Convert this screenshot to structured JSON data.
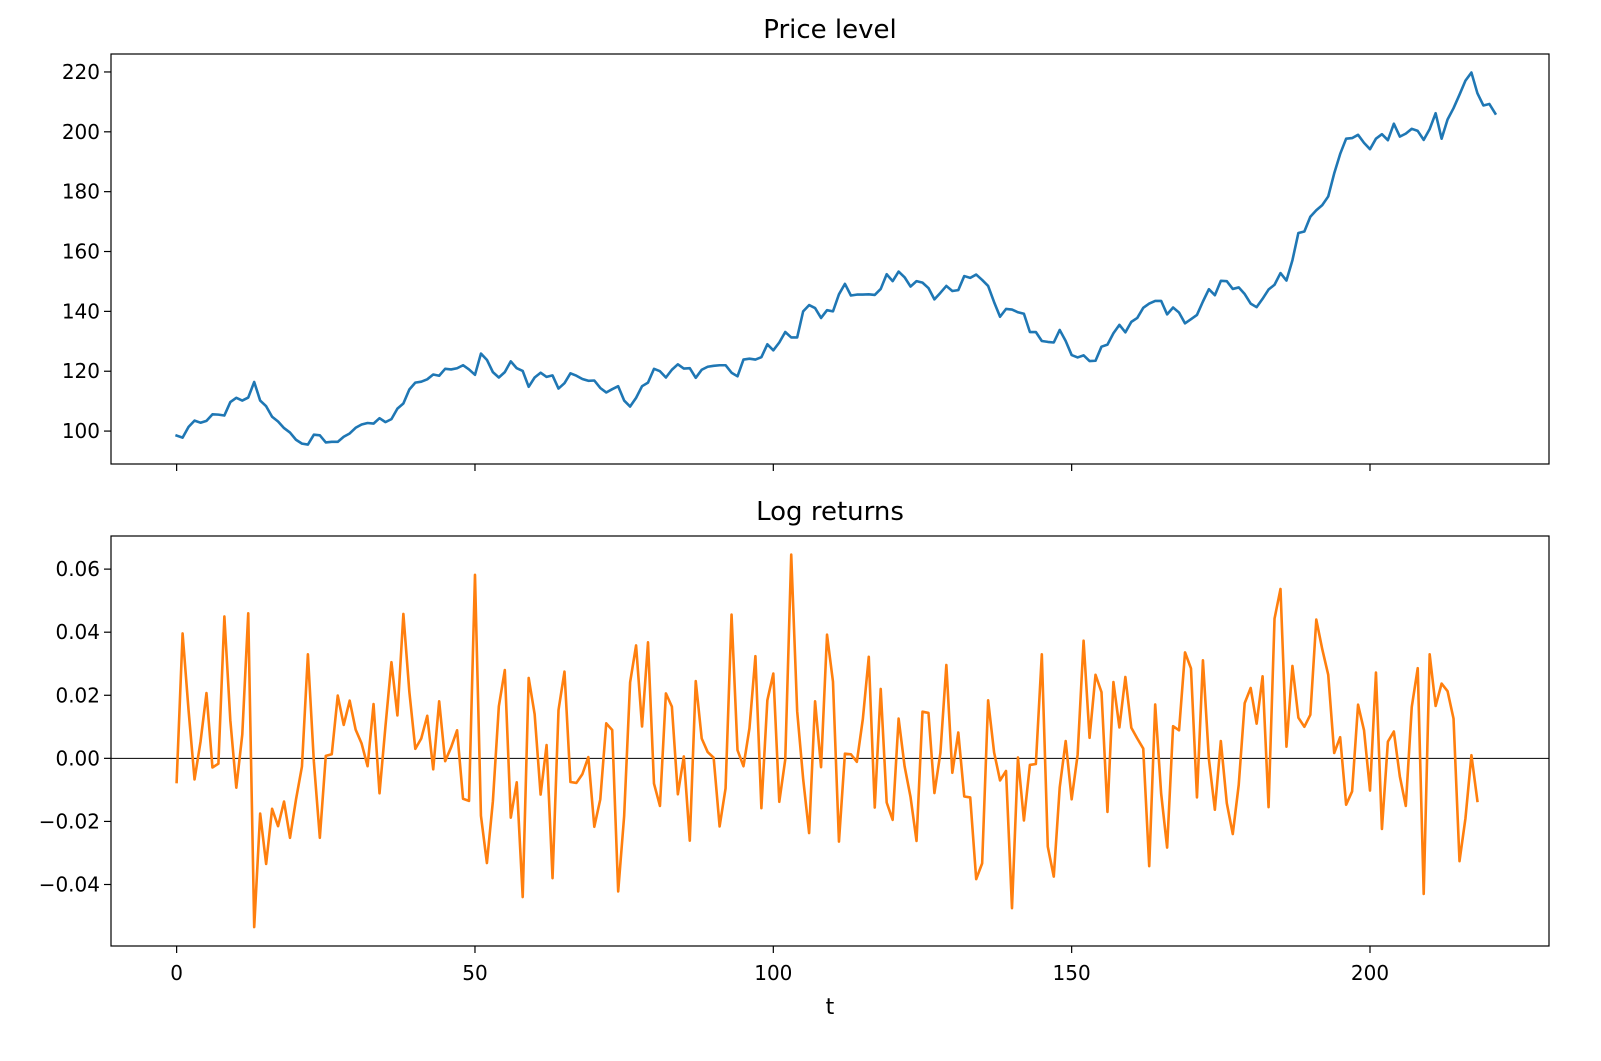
{
  "chart_data": [
    {
      "type": "line",
      "title": "Price level",
      "xlabel": "",
      "ylabel": "",
      "xlim": [
        -11,
        230
      ],
      "ylim": [
        89,
        226
      ],
      "xticks": [
        0,
        50,
        100,
        150,
        200
      ],
      "yticks": [
        100,
        120,
        140,
        160,
        180,
        200,
        220
      ],
      "ytick_labels": [
        "100",
        "120",
        "140",
        "160",
        "180",
        "200",
        "220"
      ],
      "show_xtick_labels": false,
      "grid": false,
      "color": "#1f77b4",
      "series": [
        {
          "x_start": 0,
          "values": [
            98.5,
            97.8,
            101.4,
            103.5,
            102.8,
            103.4,
            105.6,
            105.5,
            105.2,
            109.7,
            111.1,
            110.2,
            111.2,
            116.4,
            110.2,
            108.3,
            104.8,
            103.2,
            101.0,
            99.5,
            97.1,
            95.8,
            95.5,
            98.8,
            98.6,
            96.2,
            96.4,
            96.4,
            98.1,
            99.2,
            101.1,
            102.2,
            102.7,
            102.5,
            104.3,
            103.0,
            104.0,
            107.5,
            109.2,
            113.9,
            116.2,
            116.5,
            117.3,
            118.9,
            118.5,
            120.8,
            120.6,
            121.0,
            122.0,
            120.6,
            118.8,
            125.9,
            123.8,
            119.7,
            117.9,
            119.7,
            123.3,
            121.0,
            120.1,
            114.8,
            117.9,
            119.5,
            118.1,
            118.6,
            114.2,
            116.0,
            119.3,
            118.5,
            117.4,
            116.8,
            116.9,
            114.4,
            112.9,
            114.0,
            115.0,
            110.2,
            108.2,
            111.1,
            115.0,
            116.2,
            120.8,
            120.0,
            117.9,
            120.5,
            122.3,
            120.9,
            121.0,
            117.8,
            120.5,
            121.5,
            121.8,
            122.0,
            122.0,
            119.5,
            118.3,
            123.9,
            124.2,
            123.9,
            124.7,
            129.0,
            127.0,
            129.6,
            133.1,
            131.3,
            131.3,
            140.0,
            142.1,
            141.1,
            137.8,
            140.4,
            140.0,
            145.7,
            149.2,
            145.3,
            145.6,
            145.6,
            145.7,
            145.5,
            147.5,
            152.4,
            150.1,
            153.3,
            151.4,
            148.3,
            150.1,
            149.6,
            147.8,
            144.0,
            146.2,
            148.5,
            146.8,
            147.1,
            151.8,
            151.2,
            152.3,
            150.5,
            148.5,
            143.1,
            138.2,
            140.8,
            140.6,
            139.7,
            139.2,
            133.1,
            133.1,
            130.1,
            129.8,
            129.6,
            133.8,
            130.1,
            125.4,
            124.6,
            125.3,
            123.4,
            123.5,
            128.2,
            128.9,
            132.7,
            135.5,
            133.0,
            136.5,
            137.8,
            141.2,
            142.6,
            143.5,
            143.5,
            139.0,
            141.3,
            139.6,
            136.0,
            137.4,
            138.8,
            143.3,
            147.4,
            145.4,
            150.2,
            150.1,
            147.5,
            148.0,
            145.8,
            142.6,
            141.4,
            144.2,
            147.3,
            148.9,
            152.8,
            150.3,
            157.1,
            166.2,
            166.7,
            171.6,
            173.8,
            175.5,
            178.4,
            186.1,
            192.6,
            197.7,
            197.9,
            199.0,
            196.3,
            194.2,
            197.7,
            199.2,
            197.2,
            202.7,
            198.4,
            199.4,
            201.0,
            200.3,
            197.3,
            200.9,
            206.2,
            197.7,
            204.1,
            207.9,
            212.4,
            217.1,
            219.8,
            212.9,
            208.8,
            209.3,
            206.1
          ]
        }
      ]
    },
    {
      "type": "line",
      "title": "Log returns",
      "xlabel": "t",
      "ylabel": "",
      "xlim": [
        -11,
        230
      ],
      "ylim": [
        -0.0595,
        0.0705
      ],
      "xticks": [
        0,
        50,
        100,
        150,
        200
      ],
      "xtick_labels": [
        "0",
        "50",
        "100",
        "150",
        "200"
      ],
      "yticks": [
        -0.04,
        -0.02,
        0.0,
        0.02,
        0.04,
        0.06
      ],
      "ytick_labels": [
        "−0.04",
        "−0.02",
        "0.00",
        "0.02",
        "0.04",
        "0.06"
      ],
      "hline": 0,
      "grid": false,
      "color": "#ff7f0e",
      "series": [
        {
          "x_start": 0,
          "values": [
            -0.0075,
            0.0396,
            0.0152,
            -0.0067,
            0.0052,
            0.0207,
            -0.0029,
            -0.0017,
            0.045,
            0.012,
            -0.0093,
            0.0075,
            0.046,
            -0.0535,
            -0.0175,
            -0.0335,
            -0.016,
            -0.0215,
            -0.0137,
            -0.0252,
            -0.0131,
            -0.0026,
            0.033,
            -0.0011,
            -0.0252,
            0.0008,
            0.0013,
            0.0199,
            0.0106,
            0.0183,
            0.0091,
            0.0047,
            -0.0025,
            0.0172,
            -0.0111,
            0.0102,
            0.0305,
            0.0136,
            0.0458,
            0.0211,
            0.003,
            0.0063,
            0.0135,
            -0.0035,
            0.0181,
            -0.0009,
            0.0035,
            0.0089,
            -0.0128,
            -0.0135,
            0.0582,
            -0.0182,
            -0.0332,
            -0.0136,
            0.0165,
            0.028,
            -0.0188,
            -0.0076,
            -0.044,
            0.0255,
            0.014,
            -0.0115,
            0.0042,
            -0.038,
            0.0153,
            0.0275,
            -0.0075,
            -0.0078,
            -0.005,
            0.0004,
            -0.0217,
            -0.013,
            0.0111,
            0.009,
            -0.0422,
            -0.0183,
            0.0241,
            0.0358,
            0.0101,
            0.0368,
            -0.008,
            -0.0151,
            0.0206,
            0.0164,
            -0.0114,
            0.0006,
            -0.0261,
            0.0245,
            0.0063,
            0.002,
            0.0002,
            -0.0216,
            -0.0095,
            0.0456,
            0.0026,
            -0.0025,
            0.0095,
            0.0324,
            -0.0158,
            0.0184,
            0.0269,
            -0.0138,
            -0.0004,
            0.0646,
            0.0149,
            -0.0065,
            -0.0237,
            0.0181,
            -0.0028,
            0.0392,
            0.0243,
            -0.0264,
            0.0015,
            0.0013,
            -0.0011,
            0.0124,
            0.0322,
            -0.0156,
            0.022,
            -0.014,
            -0.0195,
            0.0126,
            -0.0025,
            -0.0123,
            -0.0262,
            0.0148,
            0.0144,
            -0.011,
            0.0017,
            0.0296,
            -0.0046,
            0.0082,
            -0.0121,
            -0.0124,
            -0.0383,
            -0.0333,
            0.0184,
            0.0019,
            -0.007,
            -0.004,
            -0.0475,
            0.0003,
            -0.0197,
            -0.0021,
            -0.0018,
            0.033,
            -0.028,
            -0.0375,
            -0.0092,
            0.0055,
            -0.013,
            0.0011,
            0.0373,
            0.0065,
            0.0265,
            0.021,
            -0.017,
            0.0242,
            0.0098,
            0.0258,
            0.0097,
            0.0063,
            0.0031,
            -0.0342,
            0.0171,
            -0.0112,
            -0.0283,
            0.0102,
            0.0089,
            0.0336,
            0.0285,
            -0.0124,
            0.0311,
            -0.0002,
            -0.0163,
            0.0055,
            -0.0142,
            -0.024,
            -0.0084,
            0.0175,
            0.0223,
            0.011,
            0.026,
            -0.0155,
            0.0443,
            0.0537,
            0.0037,
            0.0293,
            0.0129,
            0.01,
            0.0138,
            0.044,
            0.0346,
            0.0265,
            0.0017,
            0.0067,
            -0.0147,
            -0.0105,
            0.017,
            0.0089,
            -0.0102,
            0.0272,
            -0.0224,
            0.0053,
            0.0085,
            -0.0057,
            -0.0151,
            0.0163,
            0.0286,
            -0.043,
            0.033,
            0.0166,
            0.0237,
            0.0213,
            0.0126,
            -0.0326,
            -0.019,
            0.001,
            -0.0135
          ]
        }
      ]
    }
  ]
}
